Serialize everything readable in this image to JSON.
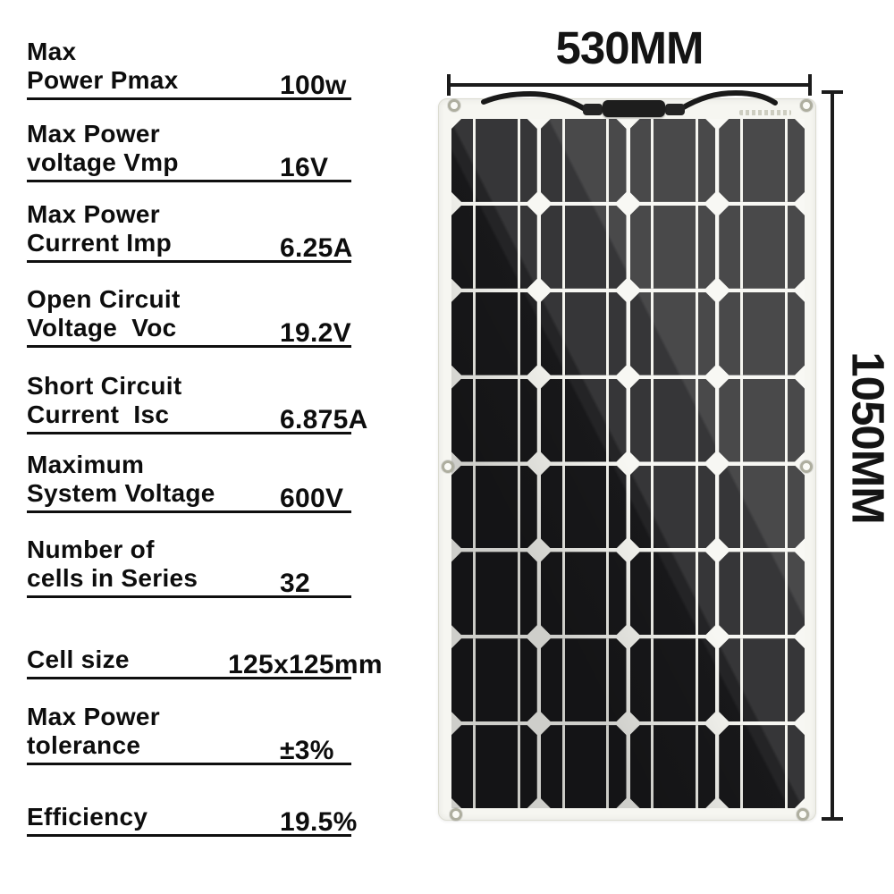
{
  "specs": [
    {
      "label": "Max\nPower Pmax",
      "value": "100w"
    },
    {
      "label": "Max Power\nvoltage Vmp",
      "value": "16V"
    },
    {
      "label": "Max Power\nCurrent Imp",
      "value": "6.25A"
    },
    {
      "label": "Open Circuit\nVoltage  Voc",
      "value": "19.2V"
    },
    {
      "label": "Short Circuit\nCurrent  Isc",
      "value": "6.875A"
    },
    {
      "label": "Maximum\nSystem Voltage",
      "value": "600V"
    },
    {
      "label": "Number of\ncells in Series",
      "value": "32"
    },
    {
      "label": "Cell size",
      "value": "125x125mm"
    },
    {
      "label": "Max Power\ntolerance",
      "value": "±3%"
    },
    {
      "label": "Efficiency",
      "value": "19.5%"
    }
  ],
  "dimensions": {
    "width_label": "530MM",
    "height_label": "1050MM"
  },
  "panel": {
    "grid_rows": 8,
    "grid_cols": 4,
    "cell_color": "#18181a",
    "frame_color": "#f6f6f1",
    "line_color": "#f2f2ec"
  }
}
